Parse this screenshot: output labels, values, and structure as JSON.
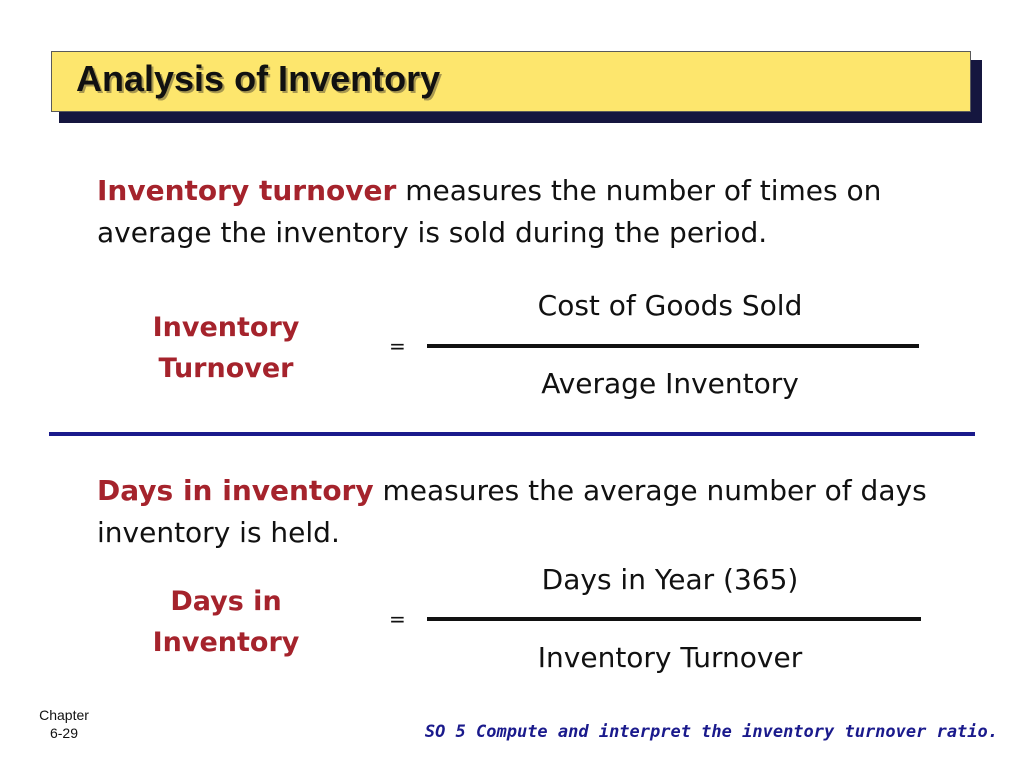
{
  "title": "Analysis of Inventory",
  "section1": {
    "term": "Inventory turnover",
    "description": " measures the number of times on average the inventory is sold during the period.",
    "lhs_line1": "Inventory",
    "lhs_line2": "Turnover",
    "equals": "=",
    "numerator": "Cost of Goods Sold",
    "denominator": "Average Inventory"
  },
  "section2": {
    "term": "Days in inventory",
    "description": " measures the average number of days inventory is held.",
    "lhs_line1": "Days in",
    "lhs_line2": "Inventory",
    "equals": "=",
    "numerator": "Days in Year (365)",
    "denominator": "Inventory Turnover"
  },
  "footer": {
    "chapter_label": "Chapter",
    "chapter_number": "6-29",
    "objective": "SO 5  Compute and interpret the inventory turnover ratio."
  },
  "colors": {
    "title_bg": "#fde66d",
    "title_shadow": "#15163f",
    "term": "#a5232c",
    "divider": "#1a1a8c"
  }
}
